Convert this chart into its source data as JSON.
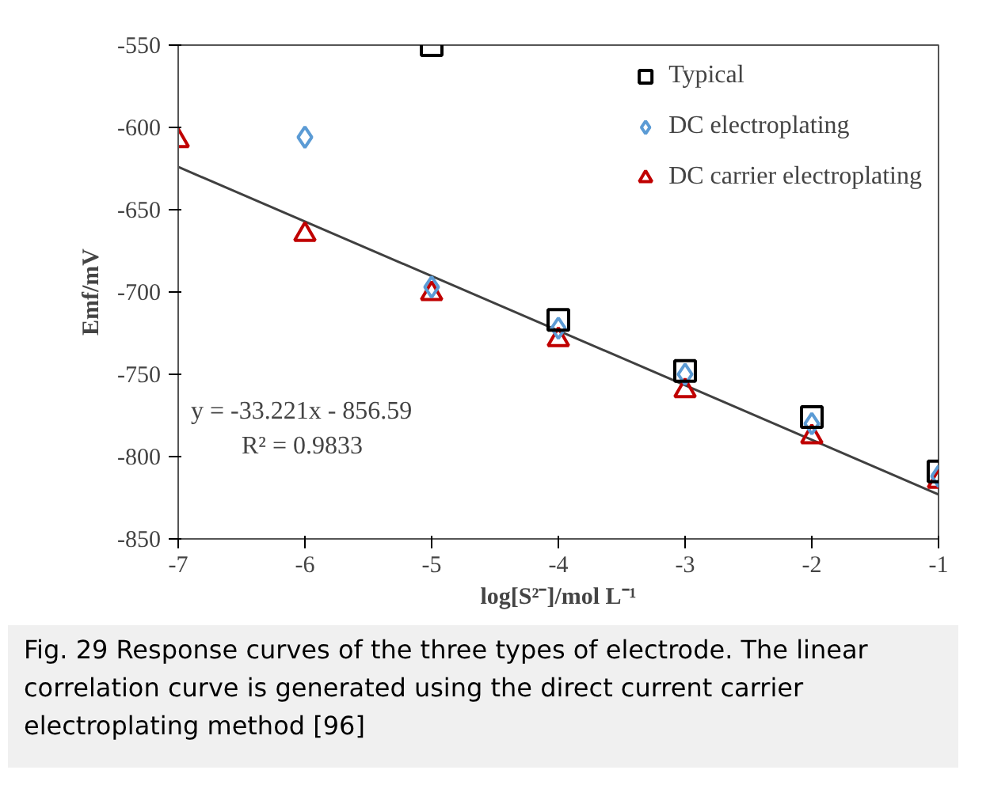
{
  "chart_data": {
    "type": "scatter",
    "xlabel": "log[S²⁻]/mol L⁻¹",
    "ylabel": "Emf/mV",
    "xlim": [
      -7,
      -1
    ],
    "xticks": [
      -7,
      -6,
      -5,
      -4,
      -3,
      -2,
      -1
    ],
    "ylim": [
      -850,
      -550
    ],
    "yticks": [
      -850,
      -800,
      -750,
      -700,
      -650,
      -600,
      -550
    ],
    "grid": false,
    "legend": "top right",
    "series": [
      {
        "name": "Typical",
        "color": "#000000",
        "marker": "square",
        "x": [
          -5,
          -4,
          -3,
          -2,
          -1
        ],
        "values": [
          -550,
          -717,
          -748,
          -776,
          -809
        ]
      },
      {
        "name": "DC electroplating",
        "color": "#5b9bd5",
        "marker": "diamond",
        "x": [
          -6,
          -5,
          -4,
          -3,
          -2,
          -1
        ],
        "values": [
          -606,
          -697,
          -722,
          -750,
          -780,
          -812
        ]
      },
      {
        "name": "DC carrier electroplating",
        "color": "#c00000",
        "marker": "triangle",
        "x": [
          -7,
          -6,
          -5,
          -4,
          -3,
          -2,
          -1
        ],
        "values": [
          -608,
          -665,
          -701,
          -729,
          -760,
          -788,
          -815
        ]
      },
      {
        "type": "line",
        "color": "#404040",
        "x": [
          -7,
          -1
        ],
        "values": [
          -624,
          -823
        ]
      }
    ],
    "annotations": [
      "y = -33.221x - 856.59",
      "R² = 0.9833",
      "Fig. 29 Response curves of the three types of electrode. The linear correlation curve is generated using the direct current carrier electroplating method [96]"
    ]
  }
}
